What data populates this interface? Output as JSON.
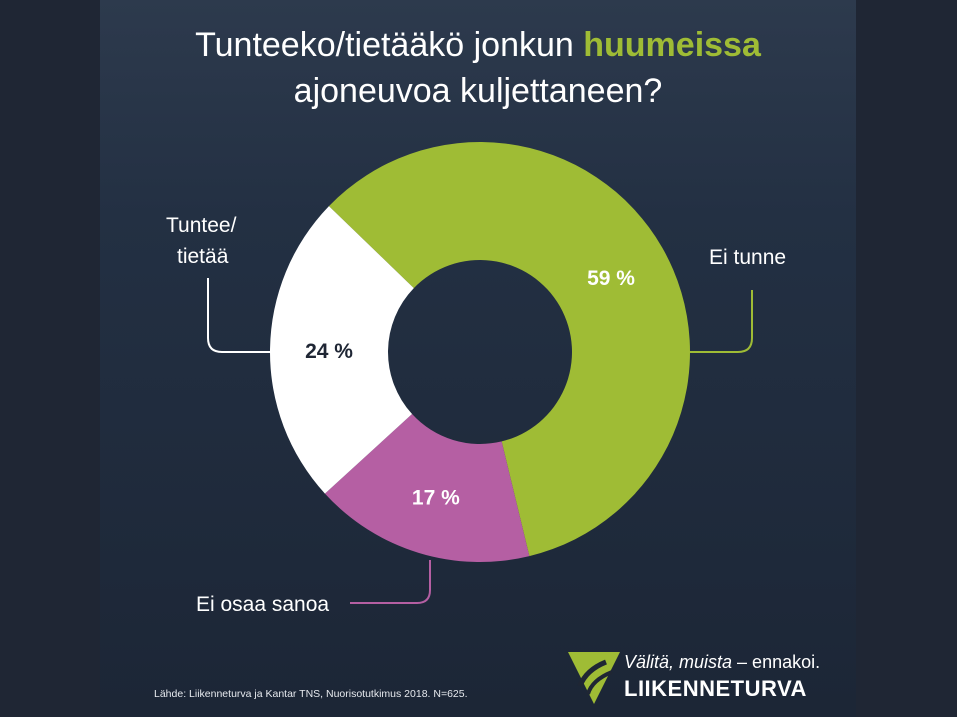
{
  "title": {
    "line1_pre": "Tunteeko/tietääkö jonkun ",
    "line1_highlight": "huumeissa",
    "line2": "ajoneuvoa kuljettaneen?"
  },
  "chart_data": {
    "type": "pie",
    "donut": true,
    "slices": [
      {
        "name": "Ei tunne",
        "value": 59,
        "label": "59 %",
        "color": "#9fbc35",
        "label_color": "#ffffff"
      },
      {
        "name": "Ei osaa sanoa",
        "value": 17,
        "label": "17 %",
        "color": "#b55fa3",
        "label_color": "#ffffff"
      },
      {
        "name": "Tuntee/ tietää",
        "value": 24,
        "label": "24 %",
        "color": "#ffffff",
        "label_color": "#1f2634"
      }
    ],
    "category_labels": {
      "ei_tunne": "Ei tunne",
      "ei_osaa": "Ei osaa sanoa",
      "tuntee_1": "Tuntee/",
      "tuntee_2": "tietää"
    }
  },
  "source": "Lähde: Liikenneturva ja Kantar TNS, Nuorisotutkimus 2018. N=625.",
  "logo": {
    "slogan_italic": "Välitä, muista",
    "slogan_rest": " – ennakoi.",
    "brand": "LIIKENNETURVA",
    "icon": "liikenneturva-triangle-logo"
  },
  "colors": {
    "background": "#1f2634",
    "accent": "#9fbc35",
    "pink": "#b55fa3"
  }
}
